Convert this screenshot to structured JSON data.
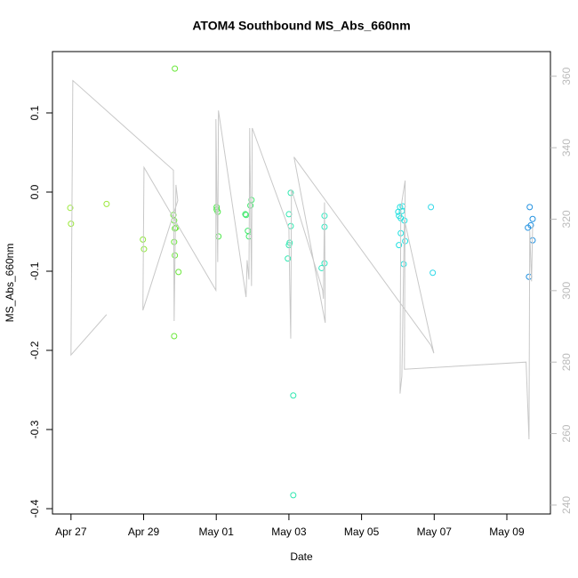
{
  "chart_data": {
    "type": "scatter",
    "title": "ATOM4 Southbound MS_Abs_660nm",
    "xlabel": "Date",
    "ylabel": "MS_Abs_660nm",
    "xlim": [
      -0.51,
      13.2
    ],
    "ylim": [
      -0.4067,
      0.1775
    ],
    "y2lim": [
      237.5,
      366.9
    ],
    "xticks": [
      {
        "value": 0,
        "label": "Apr 27"
      },
      {
        "value": 2,
        "label": "Apr 29"
      },
      {
        "value": 4,
        "label": "May 01"
      },
      {
        "value": 6,
        "label": "May 03"
      },
      {
        "value": 8,
        "label": "May 05"
      },
      {
        "value": 10,
        "label": "May 07"
      },
      {
        "value": 12,
        "label": "May 09"
      }
    ],
    "yticks": [
      -0.4,
      -0.3,
      -0.2,
      -0.1,
      {
        "value": 0,
        "label": "0.0"
      },
      0.1
    ],
    "y2ticks": [
      240,
      260,
      280,
      300,
      320,
      340,
      360
    ],
    "series": [
      {
        "type": "scatter",
        "x": [
          -0.02,
          0,
          0.98,
          1.98,
          2.01,
          2.86,
          2.82,
          2.84,
          2.89,
          2.86,
          2.84,
          2.86,
          2.84,
          2.96,
          4.01,
          4.01,
          4.04,
          4.06,
          4.8,
          4.82,
          4.87,
          4.9,
          4.94,
          4.97,
          6.05,
          6.0,
          6.05,
          6.02,
          6.0,
          5.97,
          6.12,
          6.12,
          6.9,
          6.98,
          6.98,
          6.98,
          9.01,
          9.03,
          9.06,
          9.08,
          9.11,
          9.13,
          9.03,
          9.08,
          9.16,
          9.2,
          9.18,
          9.91,
          9.96,
          12.58,
          12.61,
          12.63,
          12.66,
          12.71,
          12.71
        ],
        "values": [
          -0.02,
          -0.04,
          -0.015,
          -0.06,
          -0.072,
          0.156,
          -0.029,
          -0.036,
          -0.045,
          -0.046,
          -0.063,
          -0.08,
          -0.182,
          -0.101,
          -0.019,
          -0.022,
          -0.025,
          -0.056,
          -0.028,
          -0.029,
          -0.049,
          -0.056,
          -0.017,
          -0.01,
          -0.001,
          -0.028,
          -0.043,
          -0.064,
          -0.067,
          -0.084,
          -0.257,
          -0.383,
          -0.096,
          -0.03,
          -0.044,
          -0.09,
          -0.025,
          -0.03,
          -0.019,
          -0.033,
          -0.024,
          -0.018,
          -0.067,
          -0.052,
          -0.091,
          -0.062,
          -0.036,
          -0.019,
          -0.102,
          -0.045,
          -0.107,
          -0.019,
          -0.042,
          -0.034,
          -0.061
        ],
        "colors": [
          "#9be93a",
          "#9be93a",
          "#9be93a",
          "#8ee83a",
          "#8ee83a",
          "#6ae83a",
          "#6ae83a",
          "#6ae83a",
          "#6ae83a",
          "#6ae83a",
          "#6ae83a",
          "#6ae83a",
          "#6ae83a",
          "#6ae83a",
          "#4ee84a",
          "#4ee84a",
          "#4ee84a",
          "#4ee84a",
          "#3ee86a",
          "#3ee86a",
          "#3ee86a",
          "#3ee86a",
          "#3ee86a",
          "#3ee86a",
          "#2ee8b0",
          "#2ee8b0",
          "#2ee8b0",
          "#2ee8b0",
          "#2ee8b0",
          "#2ee8b0",
          "#2ee8b0",
          "#2ee8b0",
          "#2ee8c0",
          "#2ee8c0",
          "#2ee8c0",
          "#2ee8c0",
          "#20e0e0",
          "#20e0e0",
          "#20e0e0",
          "#20e0e0",
          "#20e0e0",
          "#20e0e0",
          "#20e0e0",
          "#20e0e0",
          "#20e0e0",
          "#20e0e0",
          "#20e0e0",
          "#30d8e8",
          "#30d8e8",
          "#2090e0",
          "#2090e0",
          "#2090e0",
          "#2090e0",
          "#2090e0",
          "#2090e0"
        ]
      },
      {
        "type": "line",
        "axis": "y2",
        "color": "#c8c8c8",
        "x": [
          0.98,
          0,
          0.05,
          2.82,
          2.84,
          2.89,
          2.94,
          1.98,
          2.01,
          3.99,
          3.99,
          4.04,
          4.06,
          4.82,
          4.85,
          4.9,
          4.92,
          4.97,
          4.99,
          6.0,
          6.02,
          6.05,
          6.07,
          6.93,
          6.95,
          6.98,
          7.0,
          6.14,
          9.91,
          9.99,
          9.18,
          9.11,
          9.06,
          9.08,
          9.2,
          9.18,
          12.53,
          12.61,
          12.63,
          12.68,
          12.71
        ],
        "values": [
          293.3,
          282,
          358.8,
          333.7,
          291.5,
          329.6,
          325.2,
          294.5,
          334.5,
          300.1,
          348.0,
          308.0,
          350.4,
          298.2,
          308.5,
          303.1,
          345.5,
          301.3,
          345.5,
          317.3,
          303.1,
          286.6,
          328.3,
          300.1,
          297.7,
          324.7,
          291.0,
          337.4,
          284.7,
          282.5,
          319.8,
          276.1,
          271.2,
          322.9,
          330.8,
          278.0,
          280.0,
          258.4,
          316.8,
          302.6,
          318.3
        ]
      }
    ]
  }
}
